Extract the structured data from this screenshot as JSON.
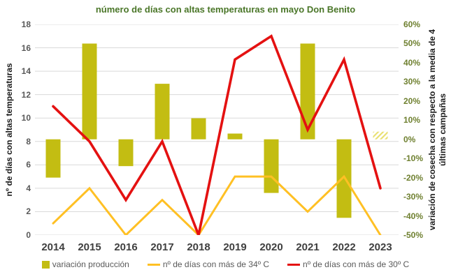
{
  "title": "número de días con altas temperaturas en mayo Don Benito",
  "chart_data": {
    "type": "combo",
    "title": "número de días con altas temperaturas en mayo Don Benito",
    "categories": [
      "2014",
      "2015",
      "2016",
      "2017",
      "2018",
      "2019",
      "2020",
      "2021",
      "2022",
      "2023"
    ],
    "series": [
      {
        "name": "variación producción",
        "type": "bar",
        "axis": "right",
        "values": [
          -20,
          50,
          -14,
          29,
          11,
          3,
          -28,
          50,
          -41,
          4
        ],
        "color": "#c3bd12",
        "hatched_indices": [
          9
        ]
      },
      {
        "name": "nº de días con más de 34º C",
        "type": "line",
        "axis": "left",
        "values": [
          1,
          4,
          0,
          3,
          0,
          5,
          5,
          2,
          5,
          0
        ],
        "color": "#ffc024"
      },
      {
        "name": "nº de días con más de 30º C",
        "type": "line",
        "axis": "left",
        "values": [
          11,
          8,
          3,
          8,
          0,
          15,
          17,
          9,
          15,
          4
        ],
        "color": "#e41111"
      }
    ],
    "left_axis": {
      "title": "nº de días con altas temperaturas",
      "min": 0,
      "max": 18,
      "tick_step": 2
    },
    "right_axis": {
      "title": "variación de cosecha con respecto a la media de 4 últimas campañas",
      "title_line1": "variación de cosecha con respecto a la media de 4",
      "title_line2": "últimas campañas",
      "min": -50,
      "max": 60,
      "tick_step": 10,
      "tick_suffix": "%"
    },
    "grid": true,
    "legend_position": "bottom"
  },
  "legend": {
    "items": [
      {
        "label": "variación producción"
      },
      {
        "label": "nº de días con más de 34º C"
      },
      {
        "label": "nº de días con más de 30º C"
      }
    ]
  },
  "colors": {
    "title": "#4a7628",
    "bar": "#c3bd12",
    "bar_hatch": "#e9e070",
    "line_34": "#ffc024",
    "line_30": "#e41111",
    "left_ticks": "#595959",
    "right_ticks": "#6f8030",
    "year_labels": "#3f3f3f",
    "legend_text": "#595959",
    "axis_title": "#1a1a1a",
    "gridline": "#d9d9d9",
    "background": "#ffffff"
  }
}
